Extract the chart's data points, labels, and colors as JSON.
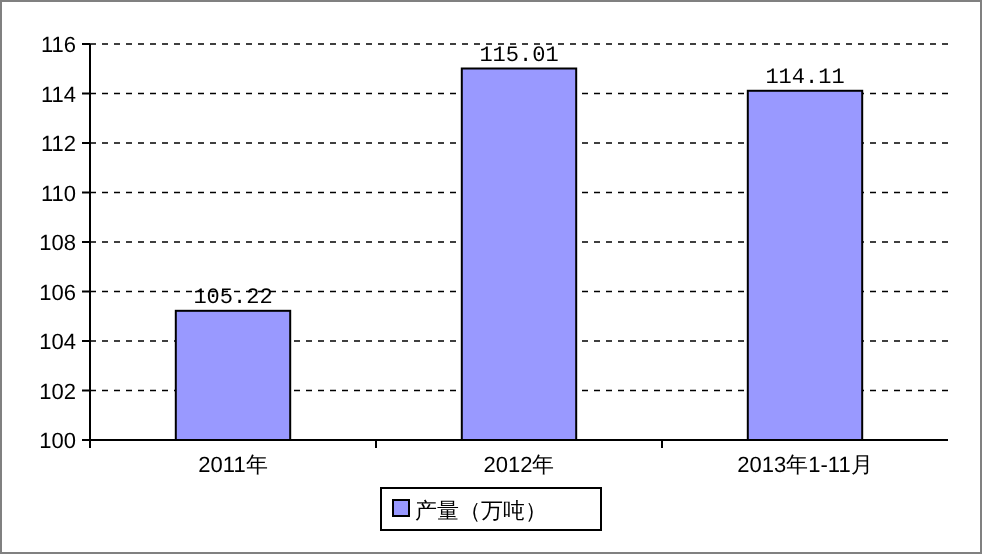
{
  "chart_data": {
    "type": "bar",
    "categories": [
      "2011年",
      "2012年",
      "2013年1-11月"
    ],
    "series": [
      {
        "name": "产量（万吨）",
        "color": "#9999ff",
        "values": [
          105.22,
          115.01,
          114.11
        ]
      }
    ],
    "ylim": [
      100,
      116
    ],
    "yticks": [
      100,
      102,
      104,
      106,
      108,
      110,
      112,
      114,
      116
    ],
    "grid": "y",
    "legend": "bottom",
    "data_labels": true
  }
}
